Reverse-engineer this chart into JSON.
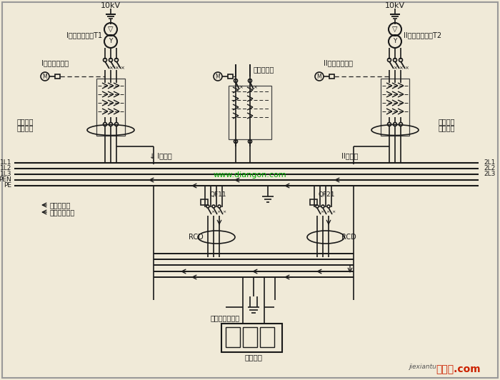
{
  "bg_color": "#f0ead8",
  "line_color": "#1a1a1a",
  "text_color": "#1a1a1a",
  "green_text": "#00aa00",
  "red_text": "#cc2200",
  "watermark": "www.diangon.com",
  "logo_sub": "jiexiantu",
  "logo_text": "接线图.com",
  "t1_label": "I段电力变压器T1",
  "t2_label": "II段电力变压器T2",
  "cb1_label": "I段进线断路器",
  "cb2_label": "II段进线断路器",
  "bus_cb_label": "母联断路器",
  "bus1_label": "I段母线",
  "bus2_label": "II段母线",
  "gfd_label1": "接地故障",
  "gfd_label2": "电流检测",
  "neutral_label": "中性线电流",
  "fault_label": "接地故障电流",
  "qf11": "QF11",
  "qf21": "QF21",
  "rcd": "RCD",
  "fault_point": "单相接地故障点",
  "load": "用电设备",
  "voltage": "10kV",
  "lines_left": [
    "1L1",
    "1L2",
    "1L3",
    "PEN",
    "PE"
  ],
  "lines_right": [
    "2L1",
    "2L2",
    "2L3"
  ]
}
